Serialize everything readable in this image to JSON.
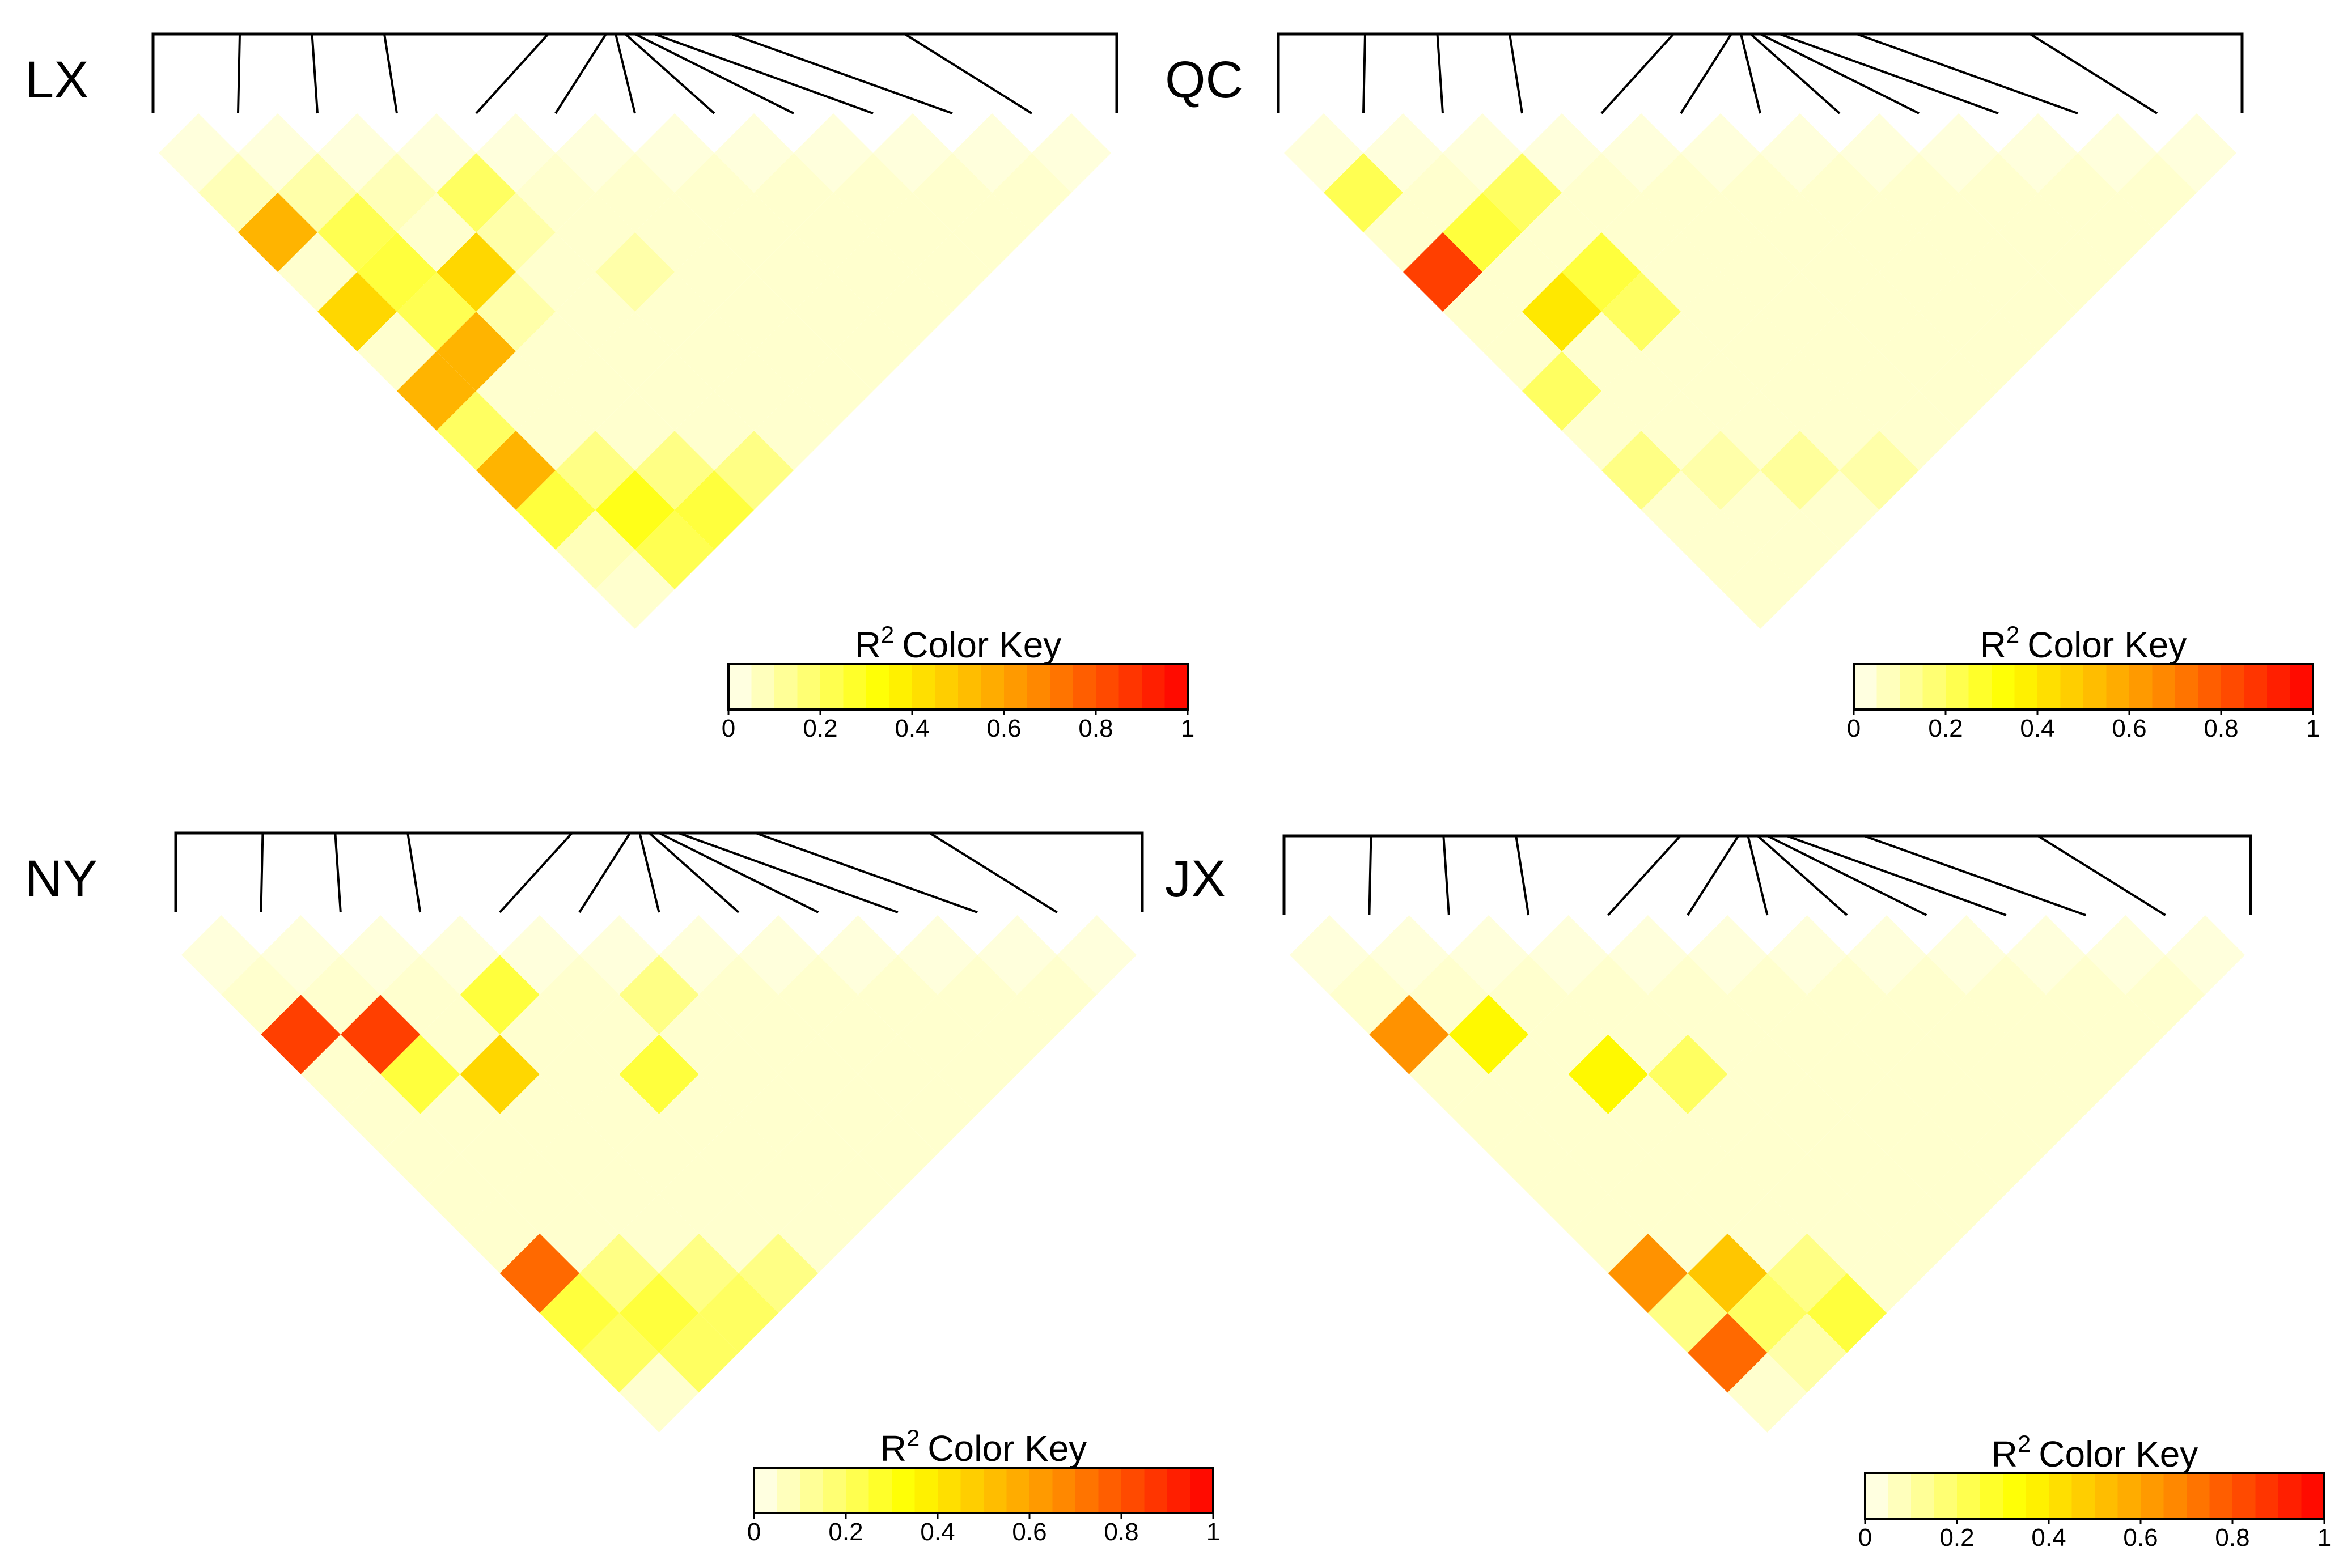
{
  "chart_data": [
    {
      "type": "heatmap",
      "label": "LX",
      "color_key": {
        "title": "Color Key",
        "symbol": "R",
        "superscript": "2",
        "min": 0,
        "max": 1,
        "ticks": [
          "0",
          "0.2",
          "0.4",
          "0.6",
          "0.8",
          "1"
        ],
        "colors": [
          "#FFFFF2",
          "#FFFF00",
          "#FF8C00",
          "#FF0000"
        ]
      },
      "values": [
        [
          0.03,
          0.03,
          0.03,
          0.03,
          0.03,
          0.03,
          0.03,
          0.03,
          0.03,
          0.03,
          0.03,
          0.03
        ],
        [
          0.08,
          0.1,
          0.08,
          0.2,
          0.05,
          0.05,
          0.05,
          0.05,
          0.05,
          0.05,
          0.05
        ],
        [
          0.55,
          0.22,
          0.05,
          0.1,
          0.05,
          0.05,
          0.05,
          0.05,
          0.05,
          0.05
        ],
        [
          0.05,
          0.25,
          0.45,
          0.05,
          0.1,
          0.05,
          0.05,
          0.05,
          0.05
        ],
        [
          0.45,
          0.22,
          0.1,
          0.05,
          0.05,
          0.05,
          0.05,
          0.05
        ],
        [
          0.05,
          0.55,
          0.05,
          0.05,
          0.05,
          0.05,
          0.05
        ],
        [
          0.55,
          0.05,
          0.05,
          0.05,
          0.05,
          0.05
        ],
        [
          0.2,
          0.05,
          0.05,
          0.05,
          0.05
        ],
        [
          0.55,
          0.15,
          0.15,
          0.15
        ],
        [
          0.25,
          0.3,
          0.25
        ],
        [
          0.08,
          0.22
        ],
        [
          0.05
        ]
      ]
    },
    {
      "type": "heatmap",
      "label": "QC",
      "color_key": {
        "title": "Color Key",
        "symbol": "R",
        "superscript": "2",
        "min": 0,
        "max": 1,
        "ticks": [
          "0",
          "0.2",
          "0.4",
          "0.6",
          "0.8",
          "1"
        ],
        "colors": [
          "#FFFFF2",
          "#FFFF00",
          "#FF8C00",
          "#FF0000"
        ]
      },
      "values": [
        [
          0.03,
          0.03,
          0.03,
          0.03,
          0.03,
          0.03,
          0.03,
          0.03,
          0.03,
          0.03,
          0.03,
          0.03
        ],
        [
          0.22,
          0.05,
          0.2,
          0.05,
          0.05,
          0.05,
          0.05,
          0.05,
          0.05,
          0.05,
          0.05
        ],
        [
          0.05,
          0.25,
          0.05,
          0.05,
          0.05,
          0.05,
          0.05,
          0.05,
          0.05,
          0.05
        ],
        [
          0.85,
          0.05,
          0.25,
          0.05,
          0.05,
          0.05,
          0.05,
          0.05,
          0.05
        ],
        [
          0.05,
          0.4,
          0.2,
          0.05,
          0.05,
          0.05,
          0.05,
          0.05
        ],
        [
          0.05,
          0.05,
          0.05,
          0.05,
          0.05,
          0.05,
          0.05
        ],
        [
          0.2,
          0.05,
          0.05,
          0.05,
          0.05,
          0.05
        ],
        [
          0.05,
          0.05,
          0.05,
          0.05,
          0.05
        ],
        [
          0.15,
          0.1,
          0.12,
          0.1
        ],
        [
          0.05,
          0.05,
          0.05
        ],
        [
          0.05,
          0.05
        ],
        [
          0.05
        ]
      ]
    },
    {
      "type": "heatmap",
      "label": "NY",
      "color_key": {
        "title": "Color Key",
        "symbol": "R",
        "superscript": "2",
        "min": 0,
        "max": 1,
        "ticks": [
          "0",
          "0.2",
          "0.4",
          "0.6",
          "0.8",
          "1"
        ],
        "colors": [
          "#FFFFF2",
          "#FFFF00",
          "#FF8C00",
          "#FF0000"
        ]
      },
      "values": [
        [
          0.03,
          0.03,
          0.03,
          0.03,
          0.03,
          0.03,
          0.03,
          0.03,
          0.03,
          0.03,
          0.03,
          0.03
        ],
        [
          0.05,
          0.05,
          0.05,
          0.25,
          0.05,
          0.15,
          0.05,
          0.05,
          0.05,
          0.05,
          0.05
        ],
        [
          0.85,
          0.85,
          0.05,
          0.05,
          0.05,
          0.05,
          0.05,
          0.05,
          0.05,
          0.05
        ],
        [
          0.05,
          0.25,
          0.45,
          0.05,
          0.25,
          0.05,
          0.05,
          0.05,
          0.05
        ],
        [
          0.05,
          0.05,
          0.05,
          0.05,
          0.05,
          0.05,
          0.05,
          0.05
        ],
        [
          0.05,
          0.05,
          0.05,
          0.05,
          0.05,
          0.05,
          0.05
        ],
        [
          0.05,
          0.05,
          0.05,
          0.05,
          0.05,
          0.05
        ],
        [
          0.05,
          0.05,
          0.05,
          0.05,
          0.05
        ],
        [
          0.75,
          0.15,
          0.15,
          0.15
        ],
        [
          0.25,
          0.25,
          0.2
        ],
        [
          0.2,
          0.2
        ],
        [
          0.05
        ]
      ]
    },
    {
      "type": "heatmap",
      "label": "JX",
      "color_key": {
        "title": "Color Key",
        "symbol": "R",
        "superscript": "2",
        "min": 0,
        "max": 1,
        "ticks": [
          "0",
          "0.2",
          "0.4",
          "0.6",
          "0.8",
          "1"
        ],
        "colors": [
          "#FFFFF2",
          "#FFFF00",
          "#FF8C00",
          "#FF0000"
        ]
      },
      "values": [
        [
          0.03,
          0.03,
          0.03,
          0.03,
          0.03,
          0.03,
          0.03,
          0.03,
          0.03,
          0.03,
          0.03,
          0.03
        ],
        [
          0.05,
          0.05,
          0.05,
          0.05,
          0.05,
          0.05,
          0.05,
          0.05,
          0.05,
          0.05,
          0.05
        ],
        [
          0.65,
          0.35,
          0.05,
          0.05,
          0.05,
          0.05,
          0.05,
          0.05,
          0.05,
          0.05
        ],
        [
          0.05,
          0.05,
          0.35,
          0.2,
          0.05,
          0.05,
          0.05,
          0.05,
          0.05
        ],
        [
          0.05,
          0.05,
          0.05,
          0.05,
          0.05,
          0.05,
          0.05,
          0.05
        ],
        [
          0.05,
          0.05,
          0.05,
          0.05,
          0.05,
          0.05,
          0.05
        ],
        [
          0.05,
          0.05,
          0.05,
          0.05,
          0.05,
          0.05
        ],
        [
          0.05,
          0.05,
          0.05,
          0.05,
          0.05
        ],
        [
          0.65,
          0.5,
          0.15,
          0.05
        ],
        [
          0.15,
          0.2,
          0.25
        ],
        [
          0.75,
          0.1
        ],
        [
          0.05
        ]
      ]
    }
  ]
}
